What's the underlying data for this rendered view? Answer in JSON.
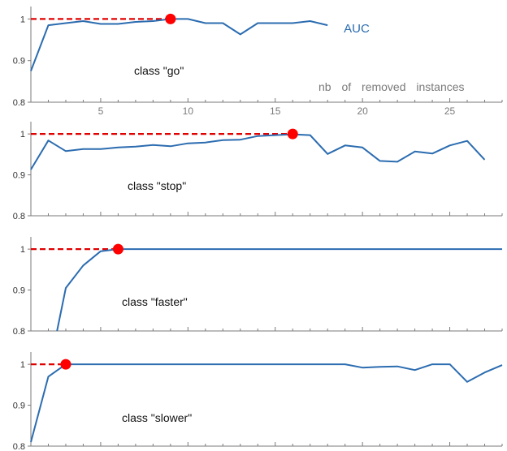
{
  "colors": {
    "line": "#2b6cb0",
    "reference": "#e00000",
    "marker": "#ff0000",
    "axis": "#7a7a7a",
    "xtick_label": "#7a7a7a"
  },
  "chart_data": [
    {
      "type": "line",
      "annotation": "class \"go\"",
      "series": [
        {
          "name": "AUC",
          "x": [
            1,
            2,
            3,
            4,
            5,
            6,
            7,
            8,
            9,
            10,
            11,
            12,
            13,
            14,
            15,
            16,
            17,
            18
          ],
          "y": [
            0.875,
            0.985,
            0.99,
            0.995,
            0.988,
            0.988,
            0.993,
            0.995,
            1.0,
            1.0,
            0.99,
            0.99,
            0.963,
            0.99,
            0.99,
            0.99,
            0.995,
            0.985
          ]
        }
      ],
      "reference_line": {
        "y": 1.0,
        "x_start": 1,
        "x_end": 9
      },
      "marker": {
        "x": 9,
        "y": 1.0
      },
      "xlabel": "nb of removed instances",
      "xticks": [
        5,
        10,
        15,
        20,
        25
      ],
      "ylim": [
        0.8,
        1.03
      ],
      "yticks": [
        "0.8",
        "0.9",
        "1"
      ],
      "xlim": [
        1,
        28
      ]
    },
    {
      "type": "line",
      "annotation": "class \"stop\"",
      "series": [
        {
          "x": [
            1,
            2,
            3,
            4,
            5,
            6,
            7,
            8,
            9,
            10,
            11,
            12,
            13,
            14,
            15,
            16,
            17,
            18,
            19,
            20,
            21,
            22,
            23,
            24,
            25,
            26,
            27
          ],
          "y": [
            0.913,
            0.984,
            0.958,
            0.963,
            0.963,
            0.967,
            0.969,
            0.973,
            0.97,
            0.977,
            0.979,
            0.985,
            0.986,
            0.995,
            0.997,
            0.999,
            0.997,
            0.951,
            0.972,
            0.967,
            0.934,
            0.932,
            0.957,
            0.952,
            0.972,
            0.983,
            0.937
          ]
        }
      ],
      "reference_line": {
        "y": 1.0,
        "x_start": 1,
        "x_end": 16
      },
      "marker": {
        "x": 16,
        "y": 1.0
      },
      "ylim": [
        0.8,
        1.03
      ],
      "yticks": [
        "0.8",
        "0.9",
        "1"
      ],
      "xlim": [
        1,
        28
      ]
    },
    {
      "type": "line",
      "annotation": "class \"faster\"",
      "series": [
        {
          "x": [
            2.5,
            3,
            4,
            5,
            6,
            7,
            8,
            9,
            10,
            11,
            12,
            13,
            14,
            15,
            16,
            17,
            18,
            19,
            20,
            21,
            22,
            23,
            24,
            25,
            26,
            27,
            28
          ],
          "y": [
            0.8,
            0.905,
            0.96,
            0.995,
            1.0,
            1.0,
            1.0,
            1.0,
            1.0,
            1.0,
            1.0,
            1.0,
            1.0,
            1.0,
            1.0,
            1.0,
            1.0,
            1.0,
            1.0,
            1.0,
            1.0,
            1.0,
            1.0,
            1.0,
            1.0,
            1.0,
            1.0
          ]
        }
      ],
      "reference_line": {
        "y": 1.0,
        "x_start": 1,
        "x_end": 6
      },
      "marker": {
        "x": 6,
        "y": 1.0
      },
      "ylim": [
        0.8,
        1.03
      ],
      "yticks": [
        "0.8",
        "0.9",
        "1"
      ],
      "xlim": [
        1,
        28
      ]
    },
    {
      "type": "line",
      "annotation": "class \"slower\"",
      "series": [
        {
          "x": [
            1,
            2,
            3,
            4,
            5,
            6,
            7,
            8,
            9,
            10,
            11,
            12,
            13,
            14,
            15,
            16,
            17,
            18,
            19,
            20,
            21,
            22,
            23,
            24,
            25,
            26,
            27,
            28
          ],
          "y": [
            0.81,
            0.97,
            1.0,
            1.0,
            1.0,
            1.0,
            1.0,
            1.0,
            1.0,
            1.0,
            1.0,
            1.0,
            1.0,
            1.0,
            1.0,
            1.0,
            1.0,
            1.0,
            1.0,
            0.992,
            0.994,
            0.995,
            0.986,
            1.0,
            1.0,
            0.957,
            0.98,
            0.998
          ]
        }
      ],
      "reference_line": {
        "y": 1.0,
        "x_start": 1,
        "x_end": 3
      },
      "marker": {
        "x": 3,
        "y": 1.0
      },
      "ylim": [
        0.8,
        1.03
      ],
      "yticks": [
        "0.8",
        "0.9",
        "1"
      ],
      "xlim": [
        1,
        28
      ]
    }
  ]
}
